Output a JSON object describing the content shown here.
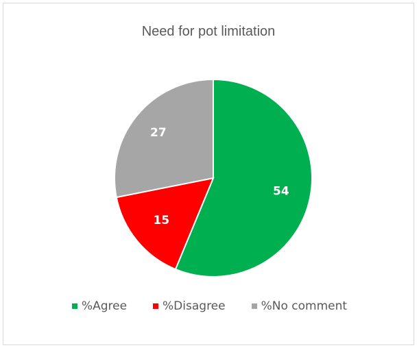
{
  "chart_data": {
    "type": "pie",
    "title": "Need for pot limitation",
    "categories": [
      "%Agree",
      "%Disagree",
      "%No comment"
    ],
    "values": [
      54,
      15,
      27
    ],
    "colors": [
      "#00b050",
      "#ff0000",
      "#a6a6a6"
    ],
    "legend": "bottom",
    "start_angle_deg": 0,
    "direction": "clockwise"
  }
}
